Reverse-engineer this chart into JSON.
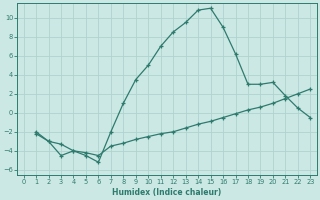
{
  "line1_x": [
    1,
    2,
    3,
    4,
    5,
    6,
    7,
    8,
    9,
    10,
    11,
    12,
    13,
    14,
    15,
    16,
    17,
    18,
    19,
    20,
    21,
    22,
    23
  ],
  "line1_y": [
    -2,
    -3,
    -4.5,
    -4,
    -4.5,
    -5.2,
    -2.0,
    1.0,
    3.5,
    5.0,
    7.0,
    8.5,
    9.5,
    10.8,
    11.0,
    9.0,
    6.2,
    3.0,
    3.0,
    3.2,
    1.8,
    0.5,
    -0.5
  ],
  "line2_x": [
    1,
    2,
    3,
    4,
    5,
    6,
    7,
    8,
    9,
    10,
    11,
    12,
    13,
    14,
    15,
    16,
    17,
    18,
    19,
    20,
    21,
    22,
    23
  ],
  "line2_y": [
    -2.2,
    -3.0,
    -3.3,
    -4.0,
    -4.2,
    -4.5,
    -3.5,
    -3.2,
    -2.8,
    -2.5,
    -2.2,
    -2.0,
    -1.6,
    -1.2,
    -0.9,
    -0.5,
    -0.1,
    0.3,
    0.6,
    1.0,
    1.5,
    2.0,
    2.5
  ],
  "line_color": "#2e7b6e",
  "bg_color": "#cce8e4",
  "grid_color": "#aed4cf",
  "xlabel": "Humidex (Indice chaleur)",
  "xlim": [
    -0.5,
    23.5
  ],
  "ylim": [
    -6.5,
    11.5
  ],
  "yticks": [
    -6,
    -4,
    -2,
    0,
    2,
    4,
    6,
    8,
    10
  ],
  "xticks": [
    0,
    1,
    2,
    3,
    4,
    5,
    6,
    7,
    8,
    9,
    10,
    11,
    12,
    13,
    14,
    15,
    16,
    17,
    18,
    19,
    20,
    21,
    22,
    23
  ]
}
